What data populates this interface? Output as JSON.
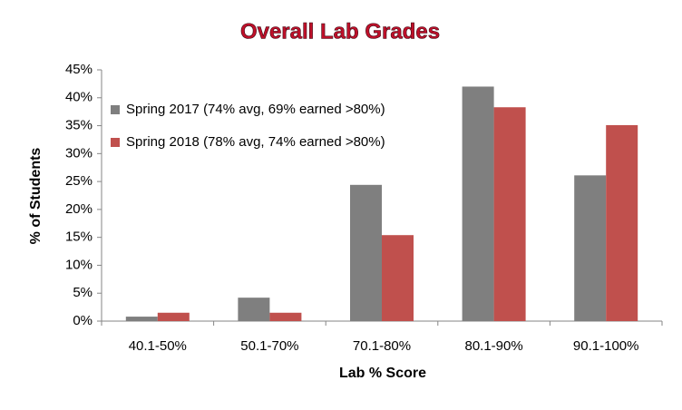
{
  "chart_data": {
    "type": "bar",
    "title": "Overall Lab Grades",
    "x_label": "Lab % Score",
    "y_label": "% of Students",
    "categories": [
      "40.1-50%",
      "50.1-70%",
      "70.1-80%",
      "80.1-90%",
      "90.1-100%"
    ],
    "series": [
      {
        "name": "Spring 2017 (74% avg, 69% earned >80%)",
        "color": "#7f7f7f",
        "values": [
          0.8,
          4.2,
          24.4,
          42.0,
          26.1
        ]
      },
      {
        "name": "Spring 2018 (78% avg, 74% earned >80%)",
        "color": "#c0504d",
        "values": [
          1.5,
          1.5,
          15.4,
          38.3,
          35.1
        ]
      }
    ],
    "ylim": [
      0,
      45
    ],
    "yticks": [
      {
        "value": 0,
        "label": "0%"
      },
      {
        "value": 5,
        "label": "5%"
      },
      {
        "value": 10,
        "label": "10%"
      },
      {
        "value": 15,
        "label": "15%"
      },
      {
        "value": 20,
        "label": "20%"
      },
      {
        "value": 25,
        "label": "25%"
      },
      {
        "value": 30,
        "label": "30%"
      },
      {
        "value": 35,
        "label": "35%"
      },
      {
        "value": 40,
        "label": "40%"
      },
      {
        "value": 45,
        "label": "45%"
      }
    ],
    "grid": false,
    "legend": "top-left"
  }
}
